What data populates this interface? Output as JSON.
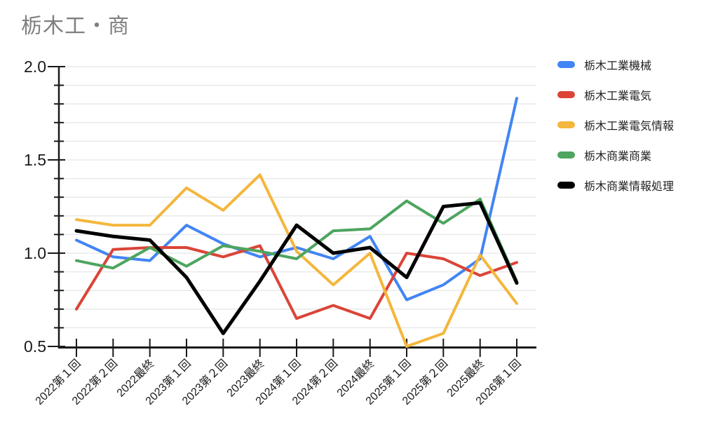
{
  "title": "栃木工・商",
  "chart_data": {
    "type": "line",
    "title": "栃木工・商",
    "categories": [
      "2022第１回",
      "2022第２回",
      "2022最終",
      "2023第１回",
      "2023第２回",
      "2023最終",
      "2024第１回",
      "2024第２回",
      "2024最終",
      "2025第１回",
      "2025第２回",
      "2025最終",
      "2026第１回"
    ],
    "series": [
      {
        "name": "栃木工業機械",
        "color": "#4285F4",
        "values": [
          1.07,
          0.98,
          0.96,
          1.15,
          1.05,
          0.98,
          1.03,
          0.97,
          1.09,
          0.75,
          0.83,
          0.97,
          1.83
        ]
      },
      {
        "name": "栃木工業電気",
        "color": "#DB4437",
        "values": [
          0.7,
          1.02,
          1.03,
          1.03,
          0.98,
          1.04,
          0.65,
          0.72,
          0.65,
          1.0,
          0.97,
          0.88,
          0.95
        ]
      },
      {
        "name": "栃木工業電気情報",
        "color": "#F4B63C",
        "values": [
          1.18,
          1.15,
          1.15,
          1.35,
          1.23,
          1.42,
          1.01,
          0.83,
          1.0,
          0.5,
          0.57,
          0.99,
          0.73
        ]
      },
      {
        "name": "栃木商業商業",
        "color": "#4EA55F",
        "values": [
          0.96,
          0.92,
          1.03,
          0.93,
          1.04,
          1.01,
          0.97,
          1.12,
          1.13,
          1.28,
          1.16,
          1.29,
          0.85
        ]
      },
      {
        "name": "栃木商業情報処理",
        "color": "#000000",
        "values": [
          1.12,
          1.09,
          1.07,
          0.87,
          0.57,
          0.85,
          1.15,
          1.0,
          1.03,
          0.87,
          1.25,
          1.27,
          0.84
        ]
      }
    ],
    "ylim": [
      0.5,
      2.0
    ],
    "yticks": [
      "2.0",
      "1.5",
      "1.0",
      "0.5"
    ],
    "minor_tick_step": 0.1,
    "grid": "horizontal",
    "legend_position": "right",
    "x_label_rotation_deg": -45
  }
}
